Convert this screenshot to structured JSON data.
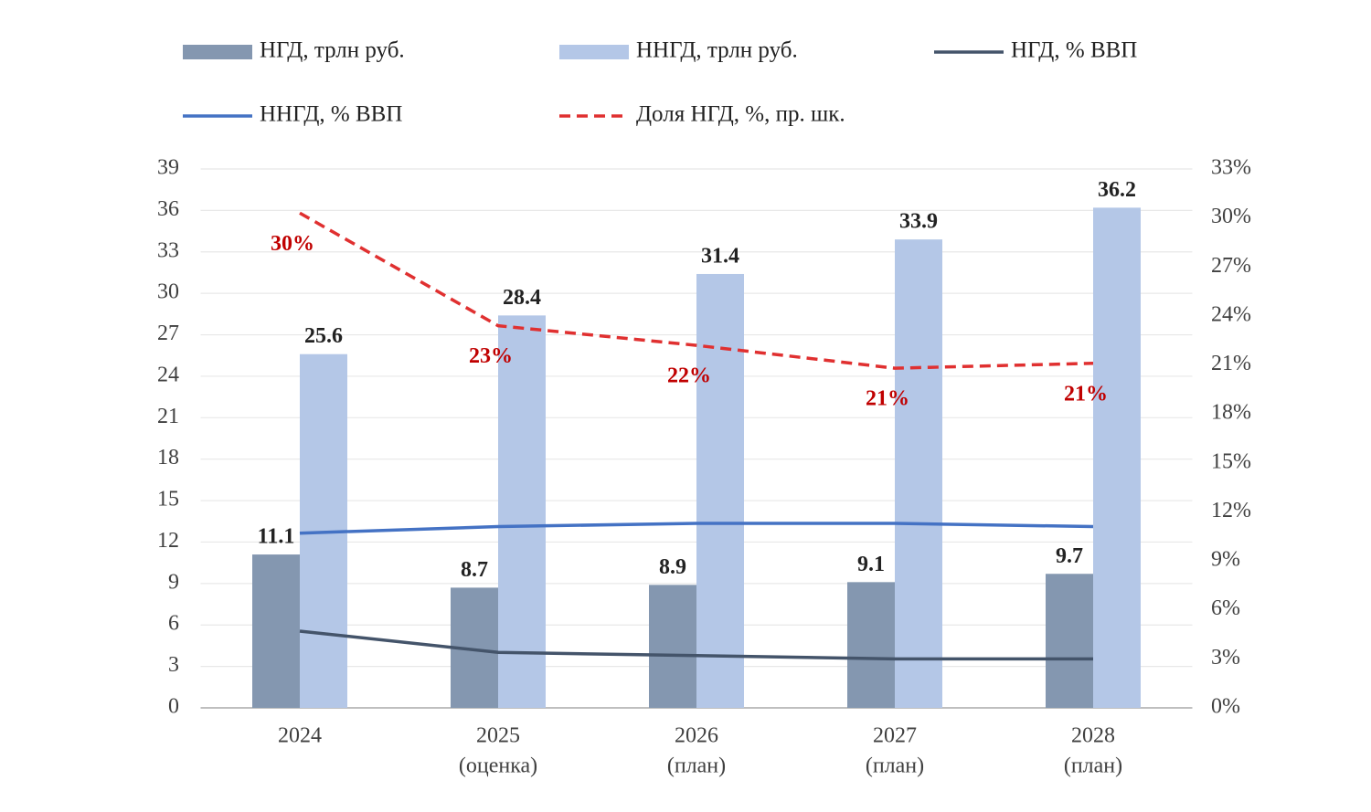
{
  "chart_data": {
    "type": "bar-line",
    "categories": [
      [
        "2024"
      ],
      [
        "2025",
        "(оценка)"
      ],
      [
        "2026",
        "(план)"
      ],
      [
        "2027",
        "(план)"
      ],
      [
        "2028",
        "(план)"
      ]
    ],
    "series": [
      {
        "name": "НГД, трлн руб.",
        "type": "bar",
        "color": "#8497b0",
        "values": [
          11.1,
          8.7,
          8.9,
          9.1,
          9.7
        ]
      },
      {
        "name": "ННГД, трлн руб.",
        "type": "bar",
        "color": "#b4c7e7",
        "values": [
          25.6,
          28.4,
          31.4,
          33.9,
          36.2
        ]
      },
      {
        "name": "НГД, % ВВП",
        "type": "line",
        "axis": "y2",
        "color": "#44546a",
        "values": [
          4.7,
          3.4,
          3.2,
          3.0,
          3.0
        ]
      },
      {
        "name": "ННГД, % ВВП",
        "type": "line",
        "axis": "y2",
        "color": "#4472c4",
        "values": [
          10.7,
          11.1,
          11.3,
          11.3,
          11.1
        ]
      },
      {
        "name": "Доля НГД, %, пр. шк.",
        "type": "line",
        "axis": "y2",
        "dashed": true,
        "color": "#e03030",
        "values": [
          30.3,
          23.4,
          22.2,
          20.8,
          21.1
        ],
        "value_labels": [
          "30%",
          "23%",
          "22%",
          "21%",
          "21%"
        ]
      }
    ],
    "ylim": [
      0,
      39
    ],
    "yticks": [
      0,
      3,
      6,
      9,
      12,
      15,
      18,
      21,
      24,
      27,
      30,
      33,
      36,
      39
    ],
    "y2lim": [
      0,
      33
    ],
    "y2ticks": [
      {
        "value": 0,
        "label": "0%"
      },
      {
        "value": 3,
        "label": "3%"
      },
      {
        "value": 6,
        "label": "6%"
      },
      {
        "value": 9,
        "label": "9%"
      },
      {
        "value": 12,
        "label": "12%"
      },
      {
        "value": 15,
        "label": "15%"
      },
      {
        "value": 18,
        "label": "18%"
      },
      {
        "value": 21,
        "label": "21%"
      },
      {
        "value": 24,
        "label": "24%"
      },
      {
        "value": 27,
        "label": "27%"
      },
      {
        "value": 30,
        "label": "30%"
      },
      {
        "value": 33,
        "label": "33%"
      }
    ],
    "grid": true
  }
}
